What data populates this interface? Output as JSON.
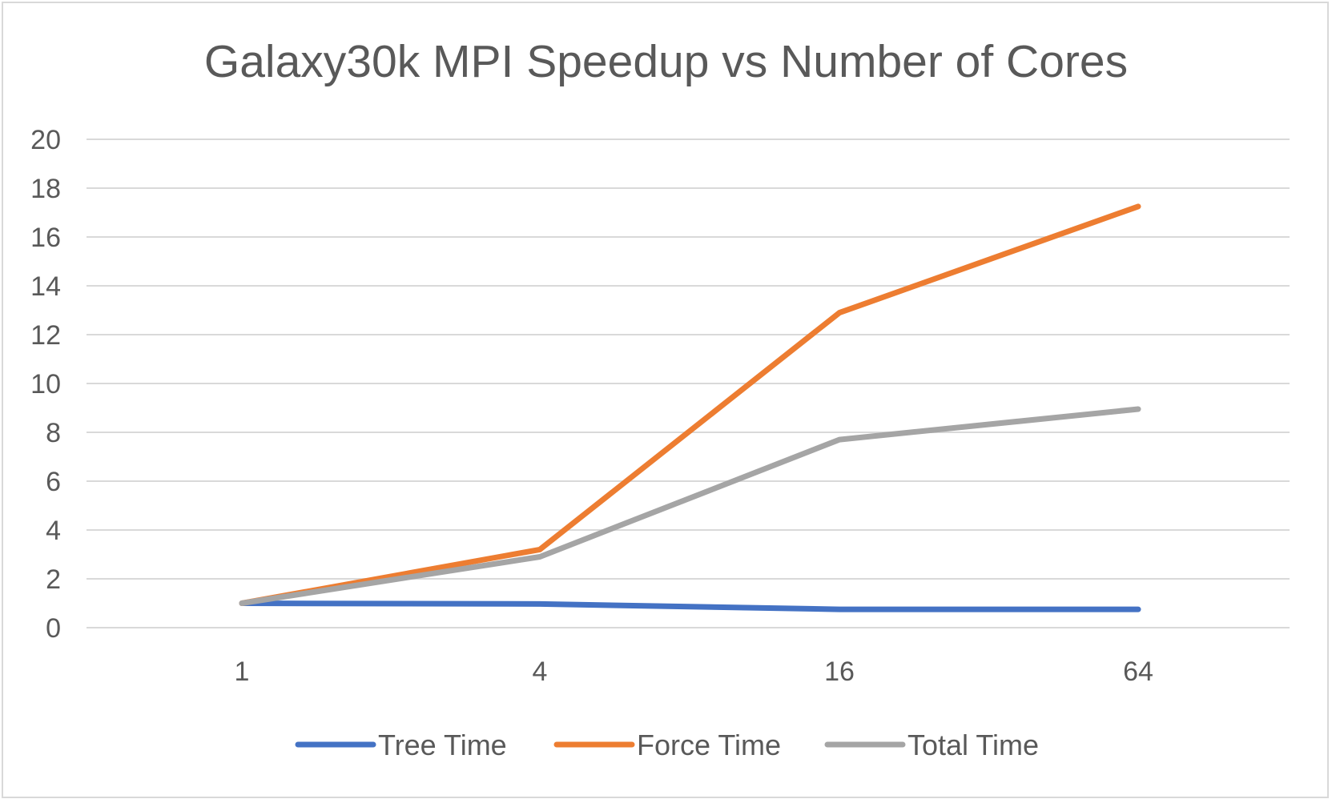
{
  "chart_data": {
    "type": "line",
    "title": "Galaxy30k MPI Speedup vs Number of Cores",
    "xlabel": "",
    "ylabel": "",
    "categories": [
      "1",
      "4",
      "16",
      "64"
    ],
    "ylim": [
      0,
      20
    ],
    "yticks": [
      "0",
      "2",
      "4",
      "6",
      "8",
      "10",
      "12",
      "14",
      "16",
      "18",
      "20"
    ],
    "grid": true,
    "legend": "bottom",
    "series": [
      {
        "name": "Tree Time",
        "color": "#4472c4",
        "values": [
          1.0,
          0.97,
          0.75,
          0.75
        ]
      },
      {
        "name": "Force Time",
        "color": "#ed7d31",
        "values": [
          1.0,
          3.2,
          12.9,
          17.25
        ]
      },
      {
        "name": "Total Time",
        "color": "#a5a5a5",
        "values": [
          1.0,
          2.9,
          7.7,
          8.95
        ]
      }
    ]
  }
}
